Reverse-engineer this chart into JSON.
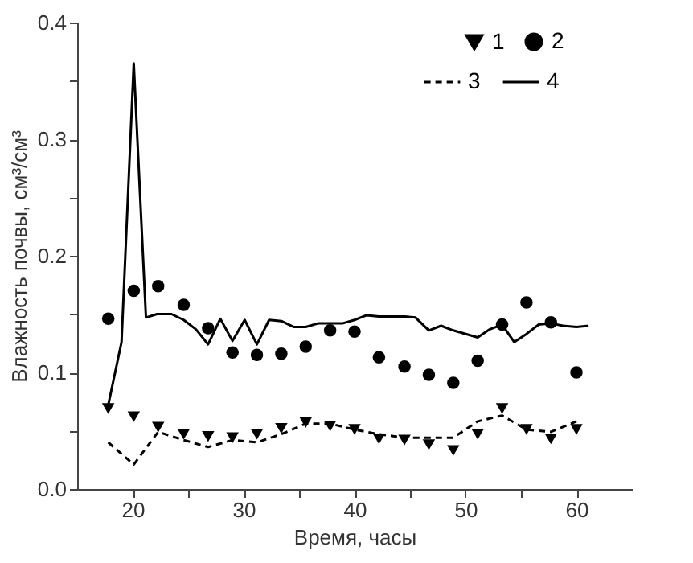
{
  "chart_data": {
    "type": "scatter",
    "xlabel": "Время, часы",
    "ylabel": "Влажность почвы, см³/см³",
    "xlim": [
      15,
      65
    ],
    "ylim": [
      0,
      0.4
    ],
    "xticks": [
      20,
      {
        "value": 25,
        "label": null
      },
      30,
      {
        "value": 35,
        "label": null
      },
      40,
      {
        "value": 45,
        "label": null
      },
      50,
      {
        "value": 55,
        "label": null
      },
      60
    ],
    "yticks": [
      {
        "value": 0,
        "label": "0.0"
      },
      {
        "value": 0.05,
        "label": null
      },
      0.1,
      {
        "value": 0.15,
        "label": null
      },
      0.2,
      {
        "value": 0.25,
        "label": null
      },
      0.3,
      {
        "value": 0.35,
        "label": null
      },
      0.4
    ],
    "legend": "top right",
    "grid": false,
    "series": [
      {
        "name": "1",
        "marker": "triangle-down",
        "color": "#000000",
        "x": [
          17.8,
          20.1,
          22.3,
          24.6,
          26.8,
          29.0,
          31.2,
          33.4,
          35.6,
          37.8,
          40.0,
          42.2,
          44.5,
          46.7,
          48.9,
          51.1,
          53.3,
          55.5,
          57.7,
          60.0
        ],
        "values": [
          0.069,
          0.062,
          0.053,
          0.047,
          0.045,
          0.044,
          0.047,
          0.052,
          0.057,
          0.054,
          0.051,
          0.043,
          0.042,
          0.038,
          0.033,
          0.047,
          0.069,
          0.051,
          0.043,
          0.051
        ]
      },
      {
        "name": "2",
        "marker": "circle",
        "color": "#000000",
        "x": [
          17.8,
          20.1,
          22.3,
          24.6,
          26.8,
          29.0,
          31.2,
          33.4,
          35.6,
          37.8,
          40.0,
          42.2,
          44.5,
          46.7,
          48.9,
          51.1,
          53.3,
          55.5,
          57.7,
          60.0
        ],
        "values": [
          0.146,
          0.17,
          0.174,
          0.158,
          0.138,
          0.117,
          0.115,
          0.116,
          0.122,
          0.136,
          0.135,
          0.113,
          0.105,
          0.098,
          0.091,
          0.11,
          0.141,
          0.16,
          0.143,
          0.1
        ]
      },
      {
        "name": "3",
        "type": "line",
        "line_style": "dashed",
        "color": "#000000",
        "x": [
          17.8,
          20.1,
          22.3,
          24.6,
          26.8,
          29.0,
          31.2,
          33.4,
          35.6,
          37.8,
          40.0,
          42.2,
          44.5,
          46.7,
          48.9,
          51.1,
          53.3,
          55.5,
          57.7,
          60.0
        ],
        "values": [
          0.04,
          0.021,
          0.049,
          0.042,
          0.036,
          0.042,
          0.04,
          0.047,
          0.056,
          0.056,
          0.051,
          0.047,
          0.044,
          0.044,
          0.044,
          0.058,
          0.063,
          0.051,
          0.049,
          0.058
        ]
      },
      {
        "name": "4",
        "type": "line",
        "line_style": "solid",
        "color": "#000000",
        "x": [
          17.8,
          19.0,
          20.1,
          21.2,
          22.2,
          23.5,
          24.6,
          25.7,
          26.8,
          27.9,
          29.0,
          30.1,
          31.2,
          32.3,
          33.4,
          34.5,
          35.6,
          36.7,
          37.8,
          38.9,
          40.0,
          41.1,
          42.2,
          44.5,
          45.5,
          46.7,
          47.8,
          48.9,
          51.1,
          52.2,
          53.3,
          54.4,
          55.5,
          56.6,
          57.7,
          58.8,
          60.0,
          61.1
        ],
        "values": [
          0.072,
          0.126,
          0.365,
          0.147,
          0.15,
          0.15,
          0.145,
          0.137,
          0.124,
          0.146,
          0.127,
          0.145,
          0.124,
          0.145,
          0.144,
          0.139,
          0.139,
          0.142,
          0.142,
          0.142,
          0.145,
          0.149,
          0.148,
          0.148,
          0.147,
          0.136,
          0.14,
          0.136,
          0.13,
          0.137,
          0.141,
          0.126,
          0.133,
          0.141,
          0.142,
          0.14,
          0.139,
          0.14
        ]
      }
    ]
  }
}
